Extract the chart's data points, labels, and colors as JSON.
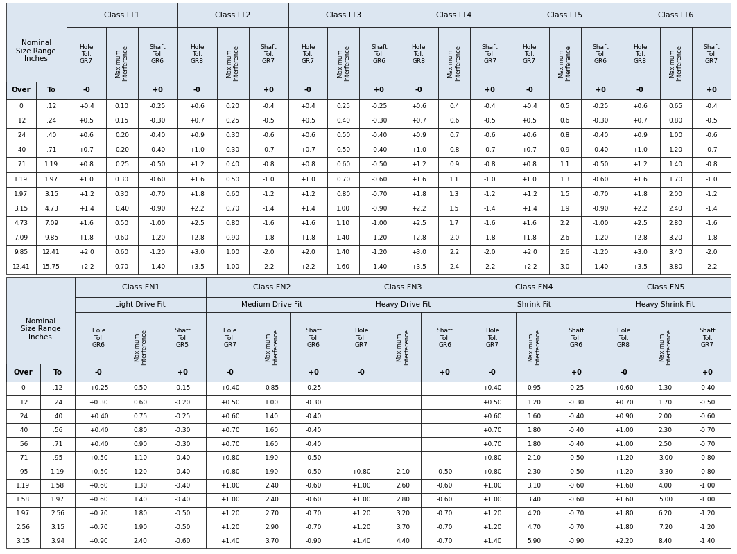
{
  "table1": {
    "class_labels": [
      "Class LT1",
      "Class LT2",
      "Class LT3",
      "Class LT4",
      "Class LT5",
      "Class LT6"
    ],
    "col_headers_per_class": [
      [
        "Hole\nTol.\nGR7",
        "Maximum\nInterference",
        "Shaft\nTol.\nGR6"
      ],
      [
        "Hole\nTol.\nGR8",
        "Maximum\nInterference",
        "Shaft\nTol.\nGR7"
      ],
      [
        "Hole\nTol.\nGR7",
        "Maximum\nInterference",
        "Shaft\nTol.\nGR6"
      ],
      [
        "Hole\nTol.\nGR8",
        "Maximum\nInterference",
        "Shaft\nTol.\nGR7"
      ],
      [
        "Hole\nTol.\nGR7",
        "Maximum\nInterference",
        "Shaft\nTol.\nGR6"
      ],
      [
        "Hole\nTol.\nGR8",
        "Maximum\nInterference",
        "Shaft\nTol.\nGR7"
      ]
    ],
    "data": [
      [
        "0",
        ".12",
        "+0.4",
        "0.10",
        "-0.25",
        "+0.6",
        "0.20",
        "-0.4",
        "+0.4",
        "0.25",
        "-0.25",
        "+0.6",
        "0.4",
        "-0.4",
        "+0.4",
        "0.5",
        "-0.25",
        "+0.6",
        "0.65",
        "-0.4"
      ],
      [
        ".12",
        ".24",
        "+0.5",
        "0.15",
        "-0.30",
        "+0.7",
        "0.25",
        "-0.5",
        "+0.5",
        "0.40",
        "-0.30",
        "+0.7",
        "0.6",
        "-0.5",
        "+0.5",
        "0.6",
        "-0.30",
        "+0.7",
        "0.80",
        "-0.5"
      ],
      [
        ".24",
        ".40",
        "+0.6",
        "0.20",
        "-0.40",
        "+0.9",
        "0.30",
        "-0.6",
        "+0.6",
        "0.50",
        "-0.40",
        "+0.9",
        "0.7",
        "-0.6",
        "+0.6",
        "0.8",
        "-0.40",
        "+0.9",
        "1.00",
        "-0.6"
      ],
      [
        ".40",
        ".71",
        "+0.7",
        "0.20",
        "-0.40",
        "+1.0",
        "0.30",
        "-0.7",
        "+0.7",
        "0.50",
        "-0.40",
        "+1.0",
        "0.8",
        "-0.7",
        "+0.7",
        "0.9",
        "-0.40",
        "+1.0",
        "1.20",
        "-0.7"
      ],
      [
        ".71",
        "1.19",
        "+0.8",
        "0.25",
        "-0.50",
        "+1.2",
        "0.40",
        "-0.8",
        "+0.8",
        "0.60",
        "-0.50",
        "+1.2",
        "0.9",
        "-0.8",
        "+0.8",
        "1.1",
        "-0.50",
        "+1.2",
        "1.40",
        "-0.8"
      ],
      [
        "1.19",
        "1.97",
        "+1.0",
        "0.30",
        "-0.60",
        "+1.6",
        "0.50",
        "-1.0",
        "+1.0",
        "0.70",
        "-0.60",
        "+1.6",
        "1.1",
        "-1.0",
        "+1.0",
        "1.3",
        "-0.60",
        "+1.6",
        "1.70",
        "-1.0"
      ],
      [
        "1.97",
        "3.15",
        "+1.2",
        "0.30",
        "-0.70",
        "+1.8",
        "0.60",
        "-1.2",
        "+1.2",
        "0.80",
        "-0.70",
        "+1.8",
        "1.3",
        "-1.2",
        "+1.2",
        "1.5",
        "-0.70",
        "+1.8",
        "2.00",
        "-1.2"
      ],
      [
        "3.15",
        "4.73",
        "+1.4",
        "0.40",
        "-0.90",
        "+2.2",
        "0.70",
        "-1.4",
        "+1.4",
        "1.00",
        "-0.90",
        "+2.2",
        "1.5",
        "-1.4",
        "+1.4",
        "1.9",
        "-0.90",
        "+2.2",
        "2.40",
        "-1.4"
      ],
      [
        "4.73",
        "7.09",
        "+1.6",
        "0.50",
        "-1.00",
        "+2.5",
        "0.80",
        "-1.6",
        "+1.6",
        "1.10",
        "-1.00",
        "+2.5",
        "1.7",
        "-1.6",
        "+1.6",
        "2.2",
        "-1.00",
        "+2.5",
        "2.80",
        "-1.6"
      ],
      [
        "7.09",
        "9.85",
        "+1.8",
        "0.60",
        "-1.20",
        "+2.8",
        "0.90",
        "-1.8",
        "+1.8",
        "1.40",
        "-1.20",
        "+2.8",
        "2.0",
        "-1.8",
        "+1.8",
        "2.6",
        "-1.20",
        "+2.8",
        "3.20",
        "-1.8"
      ],
      [
        "9.85",
        "12.41",
        "+2.0",
        "0.60",
        "-1.20",
        "+3.0",
        "1.00",
        "-2.0",
        "+2.0",
        "1.40",
        "-1.20",
        "+3.0",
        "2.2",
        "-2.0",
        "+2.0",
        "2.6",
        "-1.20",
        "+3.0",
        "3.40",
        "-2.0"
      ],
      [
        "12.41",
        "15.75",
        "+2.2",
        "0.70",
        "-1.40",
        "+3.5",
        "1.00",
        "-2.2",
        "+2.2",
        "1.60",
        "-1.40",
        "+3.5",
        "2.4",
        "-2.2",
        "+2.2",
        "3.0",
        "-1.40",
        "+3.5",
        "3.80",
        "-2.2"
      ]
    ]
  },
  "table2": {
    "class_labels": [
      "Class FN1",
      "Class FN2",
      "Class FN3",
      "Class FN4",
      "Class FN5"
    ],
    "fit_labels": [
      "Light Drive Fit",
      "Medium Drive Fit",
      "Heavy Drive Fit",
      "Shrink Fit",
      "Heavy Shrink Fit"
    ],
    "col_headers_per_class": [
      [
        "Hole\nTol.\nGR6",
        "Maximum\nInterference",
        "Shaft\nTol.\nGR5"
      ],
      [
        "Hole\nTol.\nGR7",
        "Maximum\nInterference",
        "Shaft\nTol.\nGR6"
      ],
      [
        "Hole\nTol.\nGR7",
        "Maximum\nInterference",
        "Shaft\nTol.\nGR6"
      ],
      [
        "Hole\nTol.\nGR7",
        "Maximum\nInterference",
        "Shaft\nTol.\nGR6"
      ],
      [
        "Hole\nTol.\nGR8",
        "Maximum\nInterference",
        "Shaft\nTol.\nGR7"
      ]
    ],
    "data": [
      [
        "0",
        ".12",
        "+0.25",
        "0.50",
        "-0.15",
        "+0.40",
        "0.85",
        "-0.25",
        "",
        "",
        "",
        "+0.40",
        "0.95",
        "-0.25",
        "+0.60",
        "1.30",
        "-0.40"
      ],
      [
        ".12",
        ".24",
        "+0.30",
        "0.60",
        "-0.20",
        "+0.50",
        "1.00",
        "-0.30",
        "",
        "",
        "",
        "+0.50",
        "1.20",
        "-0.30",
        "+0.70",
        "1.70",
        "-0.50"
      ],
      [
        ".24",
        ".40",
        "+0.40",
        "0.75",
        "-0.25",
        "+0.60",
        "1.40",
        "-0.40",
        "",
        "",
        "",
        "+0.60",
        "1.60",
        "-0.40",
        "+0.90",
        "2.00",
        "-0.60"
      ],
      [
        ".40",
        ".56",
        "+0.40",
        "0.80",
        "-0.30",
        "+0.70",
        "1.60",
        "-0.40",
        "",
        "",
        "",
        "+0.70",
        "1.80",
        "-0.40",
        "+1.00",
        "2.30",
        "-0.70"
      ],
      [
        ".56",
        ".71",
        "+0.40",
        "0.90",
        "-0.30",
        "+0.70",
        "1.60",
        "-0.40",
        "",
        "",
        "",
        "+0.70",
        "1.80",
        "-0.40",
        "+1.00",
        "2.50",
        "-0.70"
      ],
      [
        ".71",
        ".95",
        "+0.50",
        "1.10",
        "-0.40",
        "+0.80",
        "1.90",
        "-0.50",
        "",
        "",
        "",
        "+0.80",
        "2.10",
        "-0.50",
        "+1.20",
        "3.00",
        "-0.80"
      ],
      [
        ".95",
        "1.19",
        "+0.50",
        "1.20",
        "-0.40",
        "+0.80",
        "1.90",
        "-0.50",
        "+0.80",
        "2.10",
        "-0.50",
        "+0.80",
        "2.30",
        "-0.50",
        "+1.20",
        "3.30",
        "-0.80"
      ],
      [
        "1.19",
        "1.58",
        "+0.60",
        "1.30",
        "-0.40",
        "+1.00",
        "2.40",
        "-0.60",
        "+1.00",
        "2.60",
        "-0.60",
        "+1.00",
        "3.10",
        "-0.60",
        "+1.60",
        "4.00",
        "-1.00"
      ],
      [
        "1.58",
        "1.97",
        "+0.60",
        "1.40",
        "-0.40",
        "+1.00",
        "2.40",
        "-0.60",
        "+1.00",
        "2.80",
        "-0.60",
        "+1.00",
        "3.40",
        "-0.60",
        "+1.60",
        "5.00",
        "-1.00"
      ],
      [
        "1.97",
        "2.56",
        "+0.70",
        "1.80",
        "-0.50",
        "+1.20",
        "2.70",
        "-0.70",
        "+1.20",
        "3.20",
        "-0.70",
        "+1.20",
        "4.20",
        "-0.70",
        "+1.80",
        "6.20",
        "-1.20"
      ],
      [
        "2.56",
        "3.15",
        "+0.70",
        "1.90",
        "-0.50",
        "+1.20",
        "2.90",
        "-0.70",
        "+1.20",
        "3.70",
        "-0.70",
        "+1.20",
        "4.70",
        "-0.70",
        "+1.80",
        "7.20",
        "-1.20"
      ],
      [
        "3.15",
        "3.94",
        "+0.90",
        "2.40",
        "-0.60",
        "+1.40",
        "3.70",
        "-0.90",
        "+1.40",
        "4.40",
        "-0.70",
        "+1.40",
        "5.90",
        "-0.90",
        "+2.20",
        "8.40",
        "-1.40"
      ]
    ]
  },
  "bg_color": "#dce6f1",
  "white": "#ffffff"
}
